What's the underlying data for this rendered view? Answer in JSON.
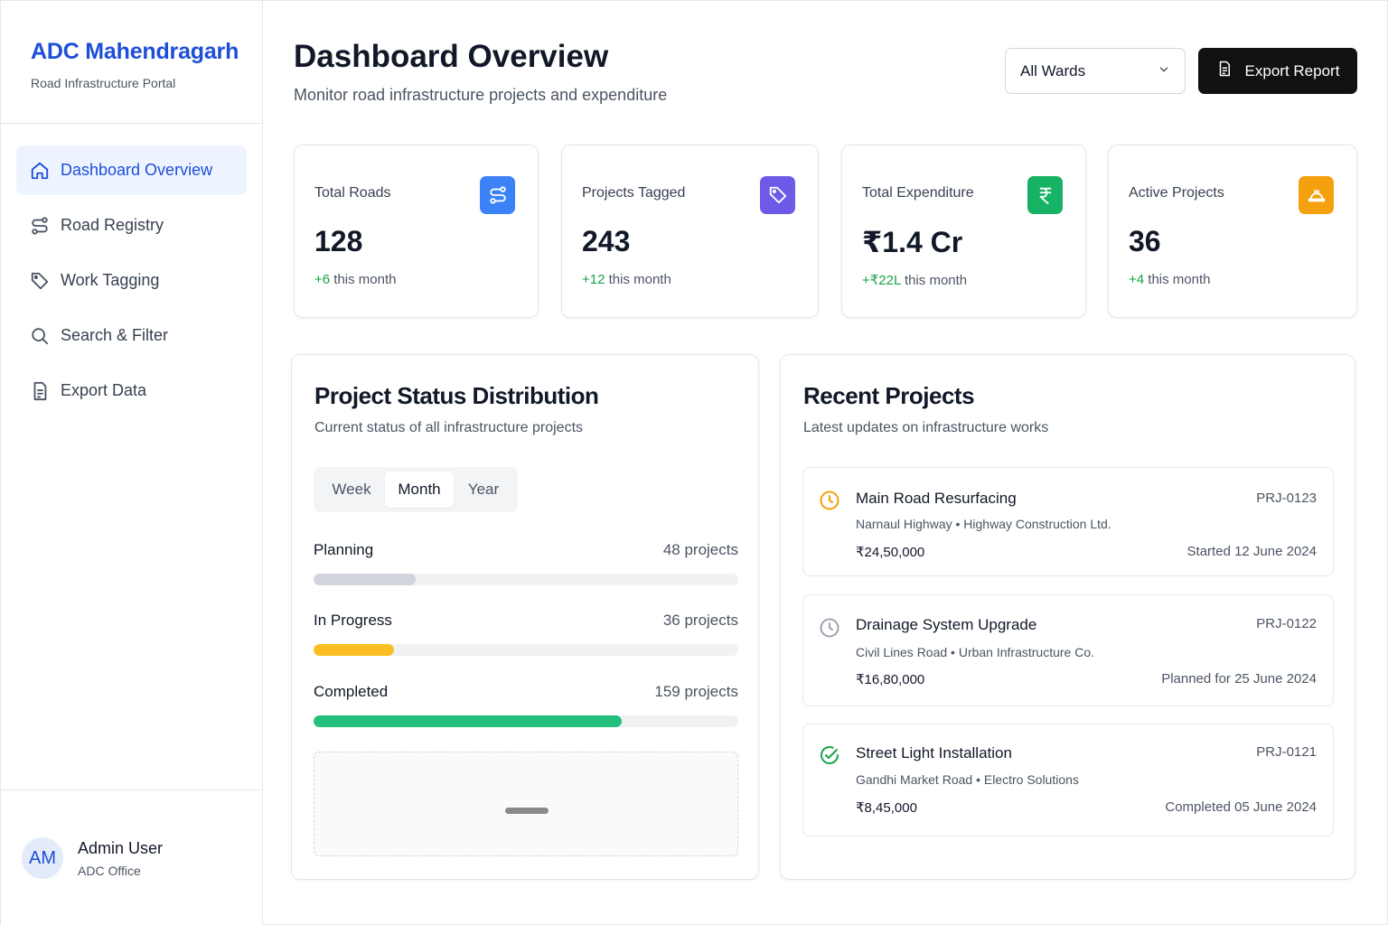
{
  "brand": {
    "title": "ADC Mahendragarh",
    "subtitle": "Road Infrastructure Portal"
  },
  "sidebar": {
    "items": [
      {
        "label": "Dashboard Overview",
        "icon": "home-icon",
        "active": true
      },
      {
        "label": "Road Registry",
        "icon": "route-icon",
        "active": false
      },
      {
        "label": "Work Tagging",
        "icon": "tag-icon",
        "active": false
      },
      {
        "label": "Search & Filter",
        "icon": "search-icon",
        "active": false
      },
      {
        "label": "Export Data",
        "icon": "document-icon",
        "active": false
      }
    ]
  },
  "user": {
    "initials": "AM",
    "name": "Admin User",
    "role": "ADC Office"
  },
  "header": {
    "title": "Dashboard Overview",
    "subtitle": "Monitor road infrastructure projects and expenditure",
    "ward_select": "All Wards",
    "export_label": "Export Report"
  },
  "stats": [
    {
      "label": "Total Roads",
      "value": "128",
      "delta": "+6",
      "delta_suffix": " this month",
      "icon": "route-icon",
      "color": "#3b82f6"
    },
    {
      "label": "Projects Tagged",
      "value": "243",
      "delta": "+12",
      "delta_suffix": " this month",
      "icon": "tag-icon",
      "color": "#6d5ae6"
    },
    {
      "label": "Total Expenditure",
      "value": "₹1.4 Cr",
      "delta": "+₹22L",
      "delta_suffix": " this month",
      "icon": "rupee-icon",
      "color": "#16b364"
    },
    {
      "label": "Active Projects",
      "value": "36",
      "delta": "+4",
      "delta_suffix": " this month",
      "icon": "hardhat-icon",
      "color": "#f5a00f"
    }
  ],
  "status_panel": {
    "title": "Project Status Distribution",
    "subtitle": "Current status of all infrastructure projects",
    "tabs": [
      "Week",
      "Month",
      "Year"
    ],
    "active_tab": "Month",
    "rows": [
      {
        "name": "Planning",
        "count": "48 projects",
        "fraction": 0.24,
        "color": "#d1d5db"
      },
      {
        "name": "In Progress",
        "count": "36 projects",
        "fraction": 0.19,
        "color": "#fbbf24"
      },
      {
        "name": "Completed",
        "count": "159 projects",
        "fraction": 0.725,
        "color": "#22c07a"
      }
    ]
  },
  "recent_panel": {
    "title": "Recent Projects",
    "subtitle": "Latest updates on infrastructure works",
    "projects": [
      {
        "name": "Main Road Resurfacing",
        "id": "PRJ-0123",
        "location": "Narnaul Highway • Highway Construction Ltd.",
        "amount": "₹24,50,000",
        "date": "Started 12 June 2024",
        "icon": "clock-icon",
        "color": "#f59e0b"
      },
      {
        "name": "Drainage System Upgrade",
        "id": "PRJ-0122",
        "location": "Civil Lines Road • Urban Infrastructure Co.",
        "amount": "₹16,80,000",
        "date": "Planned for 25 June 2024",
        "icon": "clock-icon",
        "color": "#9ca3af"
      },
      {
        "name": "Street Light Installation",
        "id": "PRJ-0121",
        "location": "Gandhi Market Road • Electro Solutions",
        "amount": "₹8,45,000",
        "date": "Completed 05 June 2024",
        "icon": "check-circle-icon",
        "color": "#16a34a"
      }
    ]
  }
}
